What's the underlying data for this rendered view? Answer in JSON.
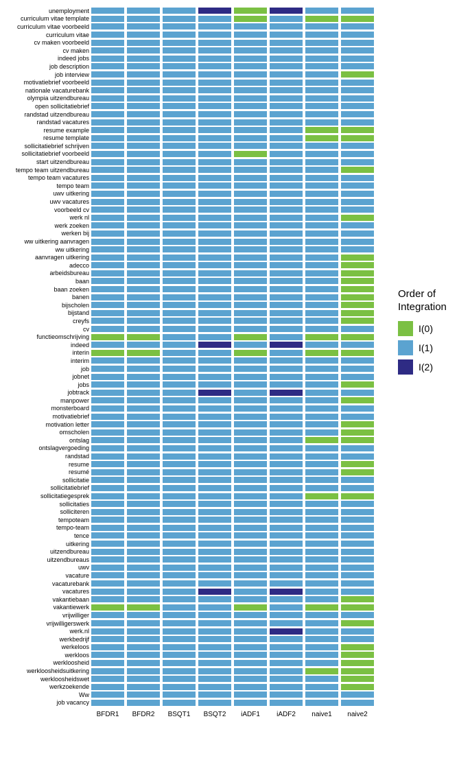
{
  "type": "heatmap",
  "legend": {
    "title": "Order of\nIntegration",
    "levels": [
      {
        "key": "0",
        "label": "I(0)",
        "color": "#7bc043"
      },
      {
        "key": "1",
        "label": "I(1)",
        "color": "#5ba3d0"
      },
      {
        "key": "2",
        "label": "I(2)",
        "color": "#2e2b84"
      }
    ]
  },
  "columns": [
    "BFDR1",
    "BFDR2",
    "BSQT1",
    "BSQT2",
    "iADF1",
    "iADF2",
    "naive1",
    "naive2"
  ],
  "rows": [
    {
      "label": "unemployment",
      "v": [
        1,
        1,
        1,
        2,
        0,
        2,
        1,
        1
      ]
    },
    {
      "label": "curriculum vitae template",
      "v": [
        1,
        1,
        1,
        1,
        0,
        1,
        0,
        0
      ]
    },
    {
      "label": "curriculum vitae voorbeeld",
      "v": [
        1,
        1,
        1,
        1,
        1,
        1,
        1,
        1
      ]
    },
    {
      "label": "curriculum vitae",
      "v": [
        1,
        1,
        1,
        1,
        1,
        1,
        1,
        1
      ]
    },
    {
      "label": "cv maken voorbeeld",
      "v": [
        1,
        1,
        1,
        1,
        1,
        1,
        1,
        1
      ]
    },
    {
      "label": "cv maken",
      "v": [
        1,
        1,
        1,
        1,
        1,
        1,
        1,
        1
      ]
    },
    {
      "label": "indeed jobs",
      "v": [
        1,
        1,
        1,
        1,
        1,
        1,
        1,
        1
      ]
    },
    {
      "label": "job description",
      "v": [
        1,
        1,
        1,
        1,
        1,
        1,
        1,
        1
      ]
    },
    {
      "label": "job interview",
      "v": [
        1,
        1,
        1,
        1,
        1,
        1,
        1,
        0
      ]
    },
    {
      "label": "motivatiebrief voorbeeld",
      "v": [
        1,
        1,
        1,
        1,
        1,
        1,
        1,
        1
      ]
    },
    {
      "label": "nationale vacaturebank",
      "v": [
        1,
        1,
        1,
        1,
        1,
        1,
        1,
        1
      ]
    },
    {
      "label": "olympia uitzendbureau",
      "v": [
        1,
        1,
        1,
        1,
        1,
        1,
        1,
        1
      ]
    },
    {
      "label": "open sollicitatiebrief",
      "v": [
        1,
        1,
        1,
        1,
        1,
        1,
        1,
        1
      ]
    },
    {
      "label": "randstad uitzendbureau",
      "v": [
        1,
        1,
        1,
        1,
        1,
        1,
        1,
        1
      ]
    },
    {
      "label": "randstad vacatures",
      "v": [
        1,
        1,
        1,
        1,
        1,
        1,
        1,
        1
      ]
    },
    {
      "label": "resume example",
      "v": [
        1,
        1,
        1,
        1,
        1,
        1,
        0,
        0
      ]
    },
    {
      "label": "resume template",
      "v": [
        1,
        1,
        1,
        1,
        1,
        1,
        0,
        0
      ]
    },
    {
      "label": "sollicitatiebrief schrijven",
      "v": [
        1,
        1,
        1,
        1,
        1,
        1,
        1,
        1
      ]
    },
    {
      "label": "sollicitatiebrief voorbeeld",
      "v": [
        1,
        1,
        1,
        1,
        0,
        1,
        1,
        1
      ]
    },
    {
      "label": "start uitzendbureau",
      "v": [
        1,
        1,
        1,
        1,
        1,
        1,
        1,
        1
      ]
    },
    {
      "label": "tempo team uitzendbureau",
      "v": [
        1,
        1,
        1,
        1,
        1,
        1,
        1,
        0
      ]
    },
    {
      "label": "tempo team vacatures",
      "v": [
        1,
        1,
        1,
        1,
        1,
        1,
        1,
        1
      ]
    },
    {
      "label": "tempo team",
      "v": [
        1,
        1,
        1,
        1,
        1,
        1,
        1,
        1
      ]
    },
    {
      "label": "uwv uitkering",
      "v": [
        1,
        1,
        1,
        1,
        1,
        1,
        1,
        1
      ]
    },
    {
      "label": "uwv vacatures",
      "v": [
        1,
        1,
        1,
        1,
        1,
        1,
        1,
        1
      ]
    },
    {
      "label": "voorbeeld cv",
      "v": [
        1,
        1,
        1,
        1,
        1,
        1,
        1,
        1
      ]
    },
    {
      "label": "werk nl",
      "v": [
        1,
        1,
        1,
        1,
        1,
        1,
        1,
        0
      ]
    },
    {
      "label": "werk zoeken",
      "v": [
        1,
        1,
        1,
        1,
        1,
        1,
        1,
        1
      ]
    },
    {
      "label": "werken bij",
      "v": [
        1,
        1,
        1,
        1,
        1,
        1,
        1,
        1
      ]
    },
    {
      "label": "ww uitkering aanvragen",
      "v": [
        1,
        1,
        1,
        1,
        1,
        1,
        1,
        1
      ]
    },
    {
      "label": "ww uitkering",
      "v": [
        1,
        1,
        1,
        1,
        1,
        1,
        1,
        1
      ]
    },
    {
      "label": "aanvragen uitkering",
      "v": [
        1,
        1,
        1,
        1,
        1,
        1,
        1,
        0
      ]
    },
    {
      "label": "adecco",
      "v": [
        1,
        1,
        1,
        1,
        1,
        1,
        1,
        0
      ]
    },
    {
      "label": "arbeidsbureau",
      "v": [
        1,
        1,
        1,
        1,
        1,
        1,
        1,
        0
      ]
    },
    {
      "label": "baan",
      "v": [
        1,
        1,
        1,
        1,
        1,
        1,
        1,
        0
      ]
    },
    {
      "label": "baan zoeken",
      "v": [
        1,
        1,
        1,
        1,
        1,
        1,
        1,
        0
      ]
    },
    {
      "label": "banen",
      "v": [
        1,
        1,
        1,
        1,
        1,
        1,
        1,
        0
      ]
    },
    {
      "label": "bijscholen",
      "v": [
        1,
        1,
        1,
        1,
        1,
        1,
        1,
        0
      ]
    },
    {
      "label": "bijstand",
      "v": [
        1,
        1,
        1,
        1,
        1,
        1,
        1,
        0
      ]
    },
    {
      "label": "creyfs",
      "v": [
        1,
        1,
        1,
        1,
        1,
        1,
        1,
        0
      ]
    },
    {
      "label": "cv",
      "v": [
        1,
        1,
        1,
        1,
        1,
        1,
        1,
        1
      ]
    },
    {
      "label": "functieomschrijving",
      "v": [
        0,
        0,
        1,
        1,
        0,
        1,
        0,
        0
      ]
    },
    {
      "label": "indeed",
      "v": [
        1,
        1,
        1,
        2,
        1,
        2,
        1,
        1
      ]
    },
    {
      "label": "interin",
      "v": [
        0,
        0,
        1,
        1,
        0,
        1,
        0,
        0
      ]
    },
    {
      "label": "interim",
      "v": [
        1,
        1,
        1,
        1,
        1,
        1,
        1,
        1
      ]
    },
    {
      "label": "job",
      "v": [
        1,
        1,
        1,
        1,
        1,
        1,
        1,
        1
      ]
    },
    {
      "label": "jobnet",
      "v": [
        1,
        1,
        1,
        1,
        1,
        1,
        1,
        1
      ]
    },
    {
      "label": "jobs",
      "v": [
        1,
        1,
        1,
        1,
        1,
        1,
        1,
        0
      ]
    },
    {
      "label": "jobtrack",
      "v": [
        1,
        1,
        1,
        2,
        1,
        2,
        1,
        1
      ]
    },
    {
      "label": "manpower",
      "v": [
        1,
        1,
        1,
        1,
        1,
        1,
        1,
        0
      ]
    },
    {
      "label": "monsterboard",
      "v": [
        1,
        1,
        1,
        1,
        1,
        1,
        1,
        1
      ]
    },
    {
      "label": "motivatiebrief",
      "v": [
        1,
        1,
        1,
        1,
        1,
        1,
        1,
        1
      ]
    },
    {
      "label": "motivation letter",
      "v": [
        1,
        1,
        1,
        1,
        1,
        1,
        1,
        0
      ]
    },
    {
      "label": "omscholen",
      "v": [
        1,
        1,
        1,
        1,
        1,
        1,
        1,
        0
      ]
    },
    {
      "label": "ontslag",
      "v": [
        1,
        1,
        1,
        1,
        1,
        1,
        0,
        0
      ]
    },
    {
      "label": "ontslagvergoeding",
      "v": [
        1,
        1,
        1,
        1,
        1,
        1,
        1,
        1
      ]
    },
    {
      "label": "randstad",
      "v": [
        1,
        1,
        1,
        1,
        1,
        1,
        1,
        1
      ]
    },
    {
      "label": "resume",
      "v": [
        1,
        1,
        1,
        1,
        1,
        1,
        1,
        0
      ]
    },
    {
      "label": "resumé",
      "v": [
        1,
        1,
        1,
        1,
        1,
        1,
        1,
        0
      ]
    },
    {
      "label": "sollicitatie",
      "v": [
        1,
        1,
        1,
        1,
        1,
        1,
        1,
        1
      ]
    },
    {
      "label": "sollicitatiebrief",
      "v": [
        1,
        1,
        1,
        1,
        1,
        1,
        1,
        1
      ]
    },
    {
      "label": "sollicitatiegesprek",
      "v": [
        1,
        1,
        1,
        1,
        1,
        1,
        0,
        0
      ]
    },
    {
      "label": "sollicitaties",
      "v": [
        1,
        1,
        1,
        1,
        1,
        1,
        1,
        1
      ]
    },
    {
      "label": "solliciteren",
      "v": [
        1,
        1,
        1,
        1,
        1,
        1,
        1,
        1
      ]
    },
    {
      "label": "tempoteam",
      "v": [
        1,
        1,
        1,
        1,
        1,
        1,
        1,
        1
      ]
    },
    {
      "label": "tempo-team",
      "v": [
        1,
        1,
        1,
        1,
        1,
        1,
        1,
        1
      ]
    },
    {
      "label": "tence",
      "v": [
        1,
        1,
        1,
        1,
        1,
        1,
        1,
        1
      ]
    },
    {
      "label": "uitkering",
      "v": [
        1,
        1,
        1,
        1,
        1,
        1,
        1,
        1
      ]
    },
    {
      "label": "uitzendbureau",
      "v": [
        1,
        1,
        1,
        1,
        1,
        1,
        1,
        1
      ]
    },
    {
      "label": "uitzendbureaus",
      "v": [
        1,
        1,
        1,
        1,
        1,
        1,
        1,
        1
      ]
    },
    {
      "label": "uwv",
      "v": [
        1,
        1,
        1,
        1,
        1,
        1,
        1,
        1
      ]
    },
    {
      "label": "vacature",
      "v": [
        1,
        1,
        1,
        1,
        1,
        1,
        1,
        1
      ]
    },
    {
      "label": "vacaturebank",
      "v": [
        1,
        1,
        1,
        1,
        1,
        1,
        1,
        1
      ]
    },
    {
      "label": "vacatures",
      "v": [
        1,
        1,
        1,
        2,
        1,
        2,
        1,
        1
      ]
    },
    {
      "label": "vakantiebaan",
      "v": [
        1,
        1,
        1,
        1,
        1,
        1,
        1,
        0
      ]
    },
    {
      "label": "vakantiewerk",
      "v": [
        0,
        0,
        1,
        1,
        0,
        1,
        0,
        0
      ]
    },
    {
      "label": "vrijwilliger",
      "v": [
        1,
        1,
        1,
        1,
        1,
        1,
        1,
        1
      ]
    },
    {
      "label": "vrijwilligerswerk",
      "v": [
        1,
        1,
        1,
        1,
        1,
        1,
        1,
        0
      ]
    },
    {
      "label": "werk.nl",
      "v": [
        1,
        1,
        1,
        1,
        1,
        2,
        1,
        1
      ]
    },
    {
      "label": "werkbedrijf",
      "v": [
        1,
        1,
        1,
        1,
        1,
        1,
        1,
        1
      ]
    },
    {
      "label": "werkeloos",
      "v": [
        1,
        1,
        1,
        1,
        1,
        1,
        1,
        0
      ]
    },
    {
      "label": "werkloos",
      "v": [
        1,
        1,
        1,
        1,
        1,
        1,
        1,
        0
      ]
    },
    {
      "label": "werkloosheid",
      "v": [
        1,
        1,
        1,
        1,
        1,
        1,
        1,
        0
      ]
    },
    {
      "label": "werkloosheidsuitkering",
      "v": [
        1,
        1,
        1,
        1,
        1,
        1,
        0,
        0
      ]
    },
    {
      "label": "werkloosheidswet",
      "v": [
        1,
        1,
        1,
        1,
        1,
        1,
        1,
        0
      ]
    },
    {
      "label": "werkzoekende",
      "v": [
        1,
        1,
        1,
        1,
        1,
        1,
        1,
        0
      ]
    },
    {
      "label": "Ww",
      "v": [
        1,
        1,
        1,
        1,
        1,
        1,
        1,
        1
      ]
    },
    {
      "label": "job vacancy",
      "v": [
        1,
        1,
        1,
        1,
        1,
        1,
        1,
        1
      ]
    }
  ],
  "colors": {
    "bg": "#ffffff",
    "text": "#000000"
  }
}
